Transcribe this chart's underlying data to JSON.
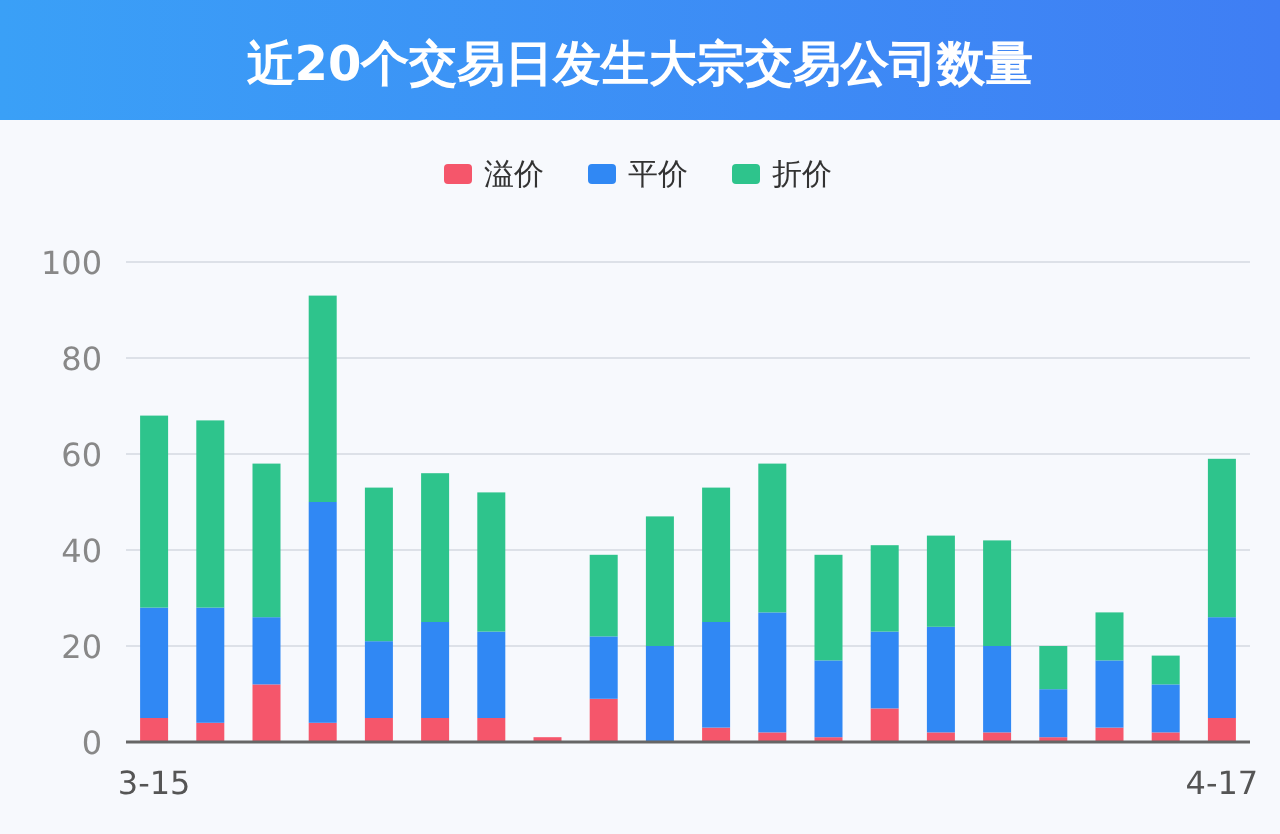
{
  "chart_data": {
    "type": "bar",
    "title": "近20个交易日发生大宗交易公司数量",
    "stacked": true,
    "categories": [
      "3-15",
      null,
      null,
      null,
      null,
      null,
      null,
      null,
      null,
      null,
      null,
      null,
      null,
      null,
      null,
      null,
      null,
      null,
      null,
      "4-17"
    ],
    "series": [
      {
        "name": "溢价",
        "color": "#f5566b",
        "values": [
          5,
          4,
          12,
          4,
          5,
          5,
          5,
          1,
          9,
          0,
          3,
          2,
          1,
          7,
          2,
          2,
          1,
          3,
          2,
          5
        ]
      },
      {
        "name": "平价",
        "color": "#3088f4",
        "values": [
          23,
          24,
          14,
          46,
          16,
          20,
          18,
          0,
          13,
          20,
          22,
          25,
          16,
          16,
          22,
          18,
          10,
          14,
          10,
          21
        ]
      },
      {
        "name": "折价",
        "color": "#2ec48c",
        "values": [
          40,
          39,
          32,
          43,
          32,
          31,
          29,
          0,
          17,
          27,
          28,
          31,
          22,
          18,
          19,
          22,
          9,
          10,
          6,
          33
        ]
      }
    ],
    "ylim": [
      0,
      100
    ],
    "yticks": [
      0,
      20,
      40,
      60,
      80,
      100
    ],
    "grid": "y",
    "legend": "top"
  }
}
